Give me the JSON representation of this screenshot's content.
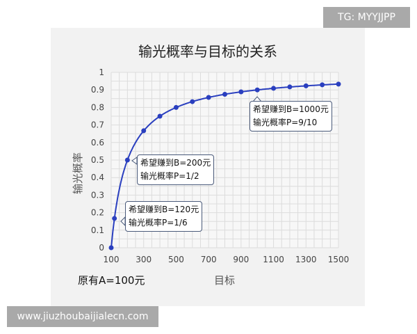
{
  "watermark_top": "TG: MYYJJPP",
  "watermark_bottom": "www.jiuzhoubaijialecn.com",
  "note_original": "原有A=100元",
  "chart_data": {
    "type": "line",
    "title": "输光概率与目标的关系",
    "xlabel": "目标",
    "ylabel": "输光概率",
    "xlim": [
      100,
      1500
    ],
    "ylim": [
      0,
      1
    ],
    "x_ticks": [
      "100",
      "300",
      "500",
      "700",
      "900",
      "1100",
      "1300",
      "1500"
    ],
    "y_ticks": [
      "0",
      "0.1",
      "0.2",
      "0.3",
      "0.4",
      "0.5",
      "0.6",
      "0.7",
      "0.8",
      "0.9",
      "1"
    ],
    "grid": true,
    "line_color": "#2a3fbf",
    "x": [
      100,
      120,
      200,
      300,
      400,
      500,
      600,
      700,
      800,
      900,
      1000,
      1100,
      1200,
      1300,
      1400,
      1500
    ],
    "y": [
      0,
      0.167,
      0.5,
      0.667,
      0.75,
      0.8,
      0.833,
      0.857,
      0.875,
      0.889,
      0.9,
      0.909,
      0.917,
      0.923,
      0.929,
      0.933
    ],
    "annotations": [
      {
        "line1": "希望赚到B=120元",
        "line2": "输光概率P=1/6",
        "x": 120,
        "y": 0.167
      },
      {
        "line1": "希望赚到B=200元",
        "line2": "输光概率P=1/2",
        "x": 200,
        "y": 0.5
      },
      {
        "line1": "希望赚到B=1000元",
        "line2": "输光概率P=9/10",
        "x": 1000,
        "y": 0.9
      }
    ]
  }
}
